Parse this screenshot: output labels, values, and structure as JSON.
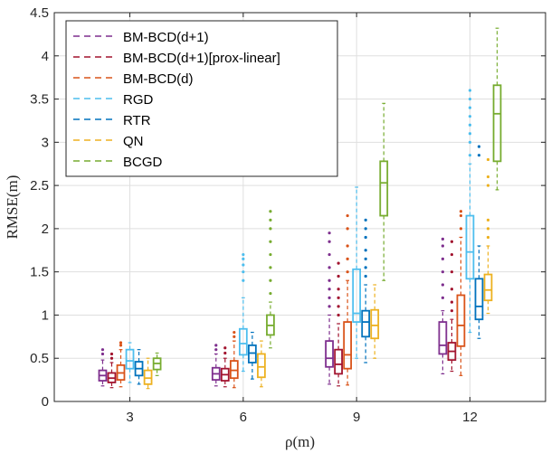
{
  "chart_data": {
    "type": "box",
    "title": "",
    "xlabel": "ρ(m)",
    "ylabel": "RMSE(m)",
    "ylim": [
      0,
      4.5
    ],
    "yticks": [
      "0",
      "0.5",
      "1",
      "1.5",
      "2",
      "2.5",
      "3",
      "3.5",
      "4",
      "4.5"
    ],
    "xlim": [
      1,
      14
    ],
    "xticks": [
      {
        "value": 3,
        "label": "3"
      },
      {
        "value": 6,
        "label": "6"
      },
      {
        "value": 9,
        "label": "9"
      },
      {
        "value": 12,
        "label": "12"
      }
    ],
    "grid": true,
    "legend_position": "top-left",
    "series": [
      {
        "name": "BM-BCD(d+1)",
        "color": "#7E2F8E",
        "boxes": [
          {
            "x": 3,
            "wmin": 0.18,
            "q1": 0.24,
            "med": 0.3,
            "q3": 0.36,
            "wmax": 0.48,
            "outliers": [
              0.55,
              0.6
            ]
          },
          {
            "x": 6,
            "wmin": 0.18,
            "q1": 0.25,
            "med": 0.32,
            "q3": 0.39,
            "wmax": 0.55,
            "outliers": [
              0.6,
              0.65
            ]
          },
          {
            "x": 9,
            "wmin": 0.2,
            "q1": 0.4,
            "med": 0.5,
            "q3": 0.7,
            "wmax": 1.0,
            "outliers": [
              1.1,
              1.2,
              1.3,
              1.4,
              1.55,
              1.7,
              1.85,
              1.95
            ]
          },
          {
            "x": 12,
            "wmin": 0.32,
            "q1": 0.55,
            "med": 0.65,
            "q3": 0.92,
            "wmax": 1.05,
            "outliers": [
              1.2,
              1.35,
              1.5,
              1.65,
              1.8,
              1.88
            ]
          }
        ]
      },
      {
        "name": "BM-BCD(d+1)[prox-linear]",
        "color": "#A2142F",
        "boxes": [
          {
            "x": 3,
            "wmin": 0.16,
            "q1": 0.22,
            "med": 0.27,
            "q3": 0.33,
            "wmax": 0.45,
            "outliers": [
              0.5,
              0.55
            ]
          },
          {
            "x": 6,
            "wmin": 0.17,
            "q1": 0.24,
            "med": 0.31,
            "q3": 0.38,
            "wmax": 0.5,
            "outliers": [
              0.56,
              0.62
            ]
          },
          {
            "x": 9,
            "wmin": 0.18,
            "q1": 0.32,
            "med": 0.43,
            "q3": 0.6,
            "wmax": 0.9,
            "outliers": [
              1.0,
              1.1,
              1.2,
              1.3,
              1.45,
              1.6
            ]
          },
          {
            "x": 12,
            "wmin": 0.35,
            "q1": 0.48,
            "med": 0.58,
            "q3": 0.68,
            "wmax": 0.95,
            "outliers": [
              1.05,
              1.15,
              1.3,
              1.5,
              1.7,
              1.85
            ]
          }
        ]
      },
      {
        "name": "BM-BCD(d)",
        "color": "#D95319",
        "boxes": [
          {
            "x": 3,
            "wmin": 0.17,
            "q1": 0.25,
            "med": 0.33,
            "q3": 0.42,
            "wmax": 0.6,
            "outliers": [
              0.65,
              0.68
            ]
          },
          {
            "x": 6,
            "wmin": 0.16,
            "q1": 0.27,
            "med": 0.36,
            "q3": 0.47,
            "wmax": 0.7,
            "outliers": [
              0.75,
              0.8
            ]
          },
          {
            "x": 9,
            "wmin": 0.19,
            "q1": 0.38,
            "med": 0.54,
            "q3": 0.92,
            "wmax": 1.4,
            "outliers": [
              1.5,
              1.65,
              1.8,
              2.0,
              2.15
            ]
          },
          {
            "x": 12,
            "wmin": 0.3,
            "q1": 0.64,
            "med": 0.88,
            "q3": 1.23,
            "wmax": 1.9,
            "outliers": [
              2.0,
              2.15,
              2.2
            ]
          }
        ]
      },
      {
        "name": "RGD",
        "color": "#4DBEEE",
        "boxes": [
          {
            "x": 3,
            "wmin": 0.22,
            "q1": 0.38,
            "med": 0.47,
            "q3": 0.6,
            "wmax": 0.68,
            "outliers": []
          },
          {
            "x": 6,
            "wmin": 0.35,
            "q1": 0.54,
            "med": 0.67,
            "q3": 0.84,
            "wmax": 1.2,
            "outliers": [
              1.4,
              1.5,
              1.58,
              1.65,
              1.7
            ]
          },
          {
            "x": 9,
            "wmin": 0.5,
            "q1": 0.92,
            "med": 1.02,
            "q3": 1.53,
            "wmax": 2.48,
            "outliers": []
          },
          {
            "x": 12,
            "wmin": 0.8,
            "q1": 1.42,
            "med": 1.73,
            "q3": 2.15,
            "wmax": 2.75,
            "outliers": [
              2.85,
              3.0,
              3.1,
              3.2,
              3.3,
              3.4,
              3.5,
              3.6
            ]
          }
        ]
      },
      {
        "name": "RTR",
        "color": "#0072BD",
        "boxes": [
          {
            "x": 3,
            "wmin": 0.2,
            "q1": 0.3,
            "med": 0.38,
            "q3": 0.46,
            "wmax": 0.6,
            "outliers": []
          },
          {
            "x": 6,
            "wmin": 0.26,
            "q1": 0.45,
            "med": 0.56,
            "q3": 0.65,
            "wmax": 0.8,
            "outliers": []
          },
          {
            "x": 9,
            "wmin": 0.45,
            "q1": 0.75,
            "med": 0.92,
            "q3": 1.05,
            "wmax": 1.35,
            "outliers": [
              1.45,
              1.55,
              1.65,
              1.75,
              1.9,
              2.0,
              2.1
            ]
          },
          {
            "x": 12,
            "wmin": 0.73,
            "q1": 0.95,
            "med": 1.1,
            "q3": 1.42,
            "wmax": 1.8,
            "outliers": [
              2.85,
              2.95
            ]
          }
        ]
      },
      {
        "name": "QN",
        "color": "#EDB120",
        "boxes": [
          {
            "x": 3,
            "wmin": 0.15,
            "q1": 0.2,
            "med": 0.27,
            "q3": 0.36,
            "wmax": 0.5,
            "outliers": []
          },
          {
            "x": 6,
            "wmin": 0.17,
            "q1": 0.28,
            "med": 0.4,
            "q3": 0.55,
            "wmax": 0.7,
            "outliers": []
          },
          {
            "x": 9,
            "wmin": 0.5,
            "q1": 0.73,
            "med": 0.88,
            "q3": 1.06,
            "wmax": 1.35,
            "outliers": []
          },
          {
            "x": 12,
            "wmin": 1.02,
            "q1": 1.17,
            "med": 1.29,
            "q3": 1.47,
            "wmax": 1.8,
            "outliers": [
              1.9,
              2.0,
              2.1,
              2.5,
              2.6,
              2.8
            ]
          }
        ]
      },
      {
        "name": "BCGD",
        "color": "#77AC30",
        "boxes": [
          {
            "x": 3,
            "wmin": 0.3,
            "q1": 0.37,
            "med": 0.44,
            "q3": 0.5,
            "wmax": 0.56,
            "outliers": []
          },
          {
            "x": 6,
            "wmin": 0.62,
            "q1": 0.77,
            "med": 0.88,
            "q3": 1.0,
            "wmax": 1.15,
            "outliers": [
              1.25,
              1.4,
              1.55,
              1.7,
              1.85,
              2.0,
              2.1,
              2.2
            ]
          },
          {
            "x": 9,
            "wmin": 1.4,
            "q1": 2.15,
            "med": 2.53,
            "q3": 2.78,
            "wmax": 3.45,
            "outliers": []
          },
          {
            "x": 12,
            "wmin": 2.45,
            "q1": 2.78,
            "med": 3.33,
            "q3": 3.66,
            "wmax": 4.32,
            "outliers": []
          }
        ]
      }
    ]
  }
}
